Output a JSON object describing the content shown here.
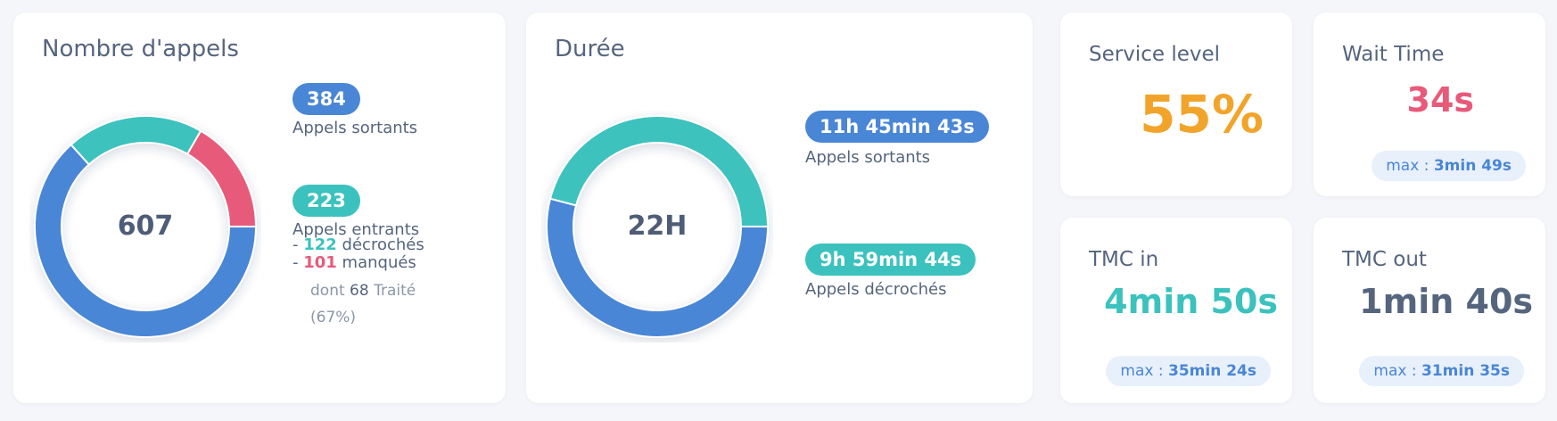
{
  "colors": {
    "blue": "#4a86d6",
    "teal": "#3cc2be",
    "red": "#e85a7a",
    "orange": "#f2a42a",
    "slate": "#55657e"
  },
  "calls": {
    "title": "Nombre d'appels",
    "total": "607",
    "outgoing": {
      "value": "384",
      "label": "Appels sortants"
    },
    "incoming": {
      "value": "223",
      "label": "Appels entrants"
    },
    "answered": {
      "prefix": "-",
      "value": "122",
      "label": "décrochés"
    },
    "missed": {
      "prefix": "-",
      "value": "101",
      "label": "manqués"
    },
    "treated": {
      "prefix": "dont",
      "value": "68",
      "label": "Traité",
      "pct": "(67%)"
    }
  },
  "duration": {
    "title": "Durée",
    "total": "22H",
    "outgoing": {
      "value": "11h 45min 43s",
      "label": "Appels sortants"
    },
    "answered": {
      "value": "9h 59min 44s",
      "label": "Appels décrochés"
    }
  },
  "service_level": {
    "title": "Service level",
    "value": "55%"
  },
  "wait_time": {
    "title": "Wait Time",
    "value": "34s",
    "max_prefix": "max :",
    "max_value": "3min 49s"
  },
  "tmc_in": {
    "title": "TMC in",
    "value": "4min 50s",
    "max_prefix": "max :",
    "max_value": "35min 24s"
  },
  "tmc_out": {
    "title": "TMC out",
    "value": "1min 40s",
    "max_prefix": "max :",
    "max_value": "31min 35s"
  },
  "chart_data": [
    {
      "type": "pie",
      "categories": [
        "Appels sortants",
        "décrochés",
        "manqués"
      ],
      "values": [
        384,
        122,
        101
      ],
      "center_label": "607"
    },
    {
      "type": "pie",
      "categories": [
        "Appels sortants",
        "Appels décrochés"
      ],
      "values": [
        42343,
        35984
      ],
      "center_label": "22H"
    }
  ]
}
